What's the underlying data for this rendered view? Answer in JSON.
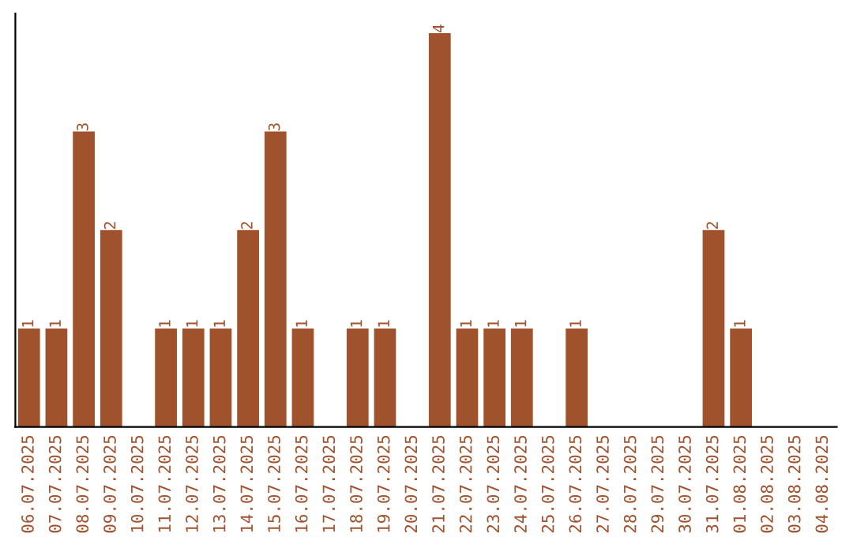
{
  "chart_data": {
    "type": "bar",
    "categories": [
      "06.07.2025",
      "07.07.2025",
      "08.07.2025",
      "09.07.2025",
      "10.07.2025",
      "11.07.2025",
      "12.07.2025",
      "13.07.2025",
      "14.07.2025",
      "15.07.2025",
      "16.07.2025",
      "17.07.2025",
      "18.07.2025",
      "19.07.2025",
      "20.07.2025",
      "21.07.2025",
      "22.07.2025",
      "23.07.2025",
      "24.07.2025",
      "25.07.2025",
      "26.07.2025",
      "27.07.2025",
      "28.07.2025",
      "29.07.2025",
      "30.07.2025",
      "31.07.2025",
      "01.08.2025",
      "02.08.2025",
      "03.08.2025",
      "04.08.2025"
    ],
    "values": [
      1,
      1,
      3,
      2,
      0,
      1,
      1,
      1,
      2,
      3,
      1,
      0,
      1,
      1,
      0,
      4,
      1,
      1,
      1,
      0,
      1,
      0,
      0,
      0,
      0,
      2,
      1,
      0,
      0,
      0
    ],
    "value_labels": [
      "1",
      "1",
      "3",
      "2",
      null,
      "1",
      "1",
      "1",
      "2",
      "3",
      "1",
      null,
      "1",
      "1",
      null,
      "4",
      "1",
      "1",
      "1",
      null,
      "1",
      null,
      null,
      null,
      null,
      "2",
      "1",
      null,
      null,
      null
    ],
    "color": "#a0522d",
    "ylim": [
      0,
      4.2
    ],
    "tick_labels": "x",
    "grid": false,
    "legend": false
  }
}
